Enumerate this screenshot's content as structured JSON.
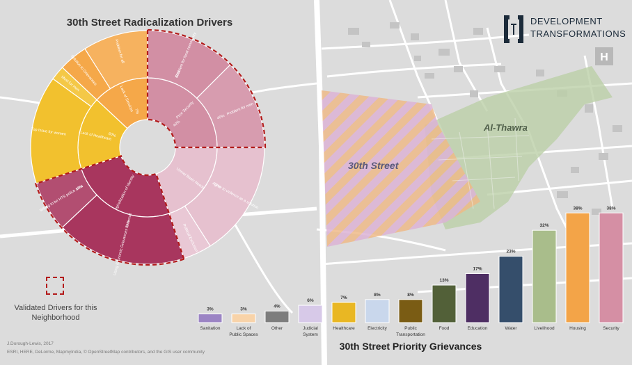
{
  "sunburst_title": "30th Street Radicalization Drivers",
  "sunburst_title_sup": "th",
  "bars_title": "30th Street Priority Grievances",
  "legend_text": "Validated Drivers for this Neighborhood",
  "credit_line1": "J.Dorough-Lewis, 2017",
  "credit_line2": "ESRI, HERE, DeLorme, MapmyIndia, © OpenStreetMap contributors, and the GIS user community",
  "logo": {
    "line1": "DEVELOPMENT",
    "line2": "TRANSFORMATIONS"
  },
  "map_labels": {
    "street": "30th Street",
    "thawra": "Al-Thawra"
  },
  "colors": {
    "economic": "#a8365e",
    "governance": "#e6c1cf",
    "security": "#d28fa4",
    "social": "#f5a849",
    "services": "#f2c12e",
    "validated_border": "#b31b1b"
  },
  "chart_data": [
    {
      "type": "sunburst",
      "title": "30th Street Radicalization Drivers",
      "segments": [
        {
          "category": "Security",
          "start": 0,
          "end": 25,
          "mid_label": "Poor Security",
          "inner_pct": "",
          "outer": [
            {
              "label": "Problem for local community",
              "pct": "60%",
              "start": 0,
              "end": 12.5
            },
            {
              "label": "Problem for men",
              "pct": "40%",
              "start": 12.5,
              "end": 25
            }
          ]
        },
        {
          "category": "Governance",
          "start": 25,
          "end": 45,
          "mid_label": "Unmet Basic Needs",
          "inner_pct": "",
          "outer": [
            {
              "label": "Agree to violence as a solution",
              "pct": "78%",
              "start": 25,
              "end": 41
            },
            {
              "label": "Political Exclusion",
              "pct": "",
              "start": 41,
              "end": 45
            }
          ]
        },
        {
          "category": "Economic",
          "start": 45,
          "end": 70,
          "mid_label": "Marginalization of Identity",
          "inner_pct": "",
          "outer": [
            {
              "label": "Using Economic Grievances to recruit",
              "pct": "74%",
              "start": 45,
              "end": 63
            },
            {
              "label": "Willing to be HTS police area",
              "pct": "19%",
              "start": 63,
              "end": 70
            }
          ]
        },
        {
          "category": "Services",
          "start": 70,
          "end": 87,
          "mid_label": "Lack of Healthcare",
          "inner_pct": "60%",
          "outer": [
            {
              "label": "Top Issue for women",
              "pct": "",
              "start": 70,
              "end": 85
            },
            {
              "label": "Most for men",
              "pct": "",
              "start": 85,
              "end": 87
            }
          ]
        },
        {
          "category": "Social",
          "start": 87,
          "end": 100,
          "mid_label": "Lack of Services",
          "inner_pct": "7%",
          "outer": [
            {
              "label": "Solution to Grievances",
              "pct": "",
              "start": 87,
              "end": 91
            },
            {
              "label": "Problem for all",
              "pct": "",
              "start": 91,
              "end": 100
            }
          ]
        }
      ],
      "inner_pct_top": "40%",
      "validated": [
        "Security",
        "Economic"
      ]
    },
    {
      "type": "bar",
      "title": "30th Street Priority Grievances",
      "categories": [
        "Sanitation",
        "Lack of Public Spaces",
        "Other",
        "Judicial System",
        "Healthcare",
        "Electricity",
        "Public Transportation",
        "Food",
        "Education",
        "Water",
        "Livelihood",
        "Housing",
        "Security"
      ],
      "values": [
        3,
        3,
        4,
        6,
        7,
        8,
        8,
        13,
        17,
        23,
        32,
        38,
        38
      ],
      "value_labels": [
        "3%",
        "3%",
        "4%",
        "6%",
        "7%",
        "8%",
        "8%",
        "13%",
        "17%",
        "23%",
        "32%",
        "38%",
        "38%"
      ],
      "bar_colors": [
        "#9b84c4",
        "#f8d3a9",
        "#7d7d7d",
        "#d7c9e8",
        "#e9b723",
        "#c9d7ec",
        "#7a5c14",
        "#526038",
        "#4e2e63",
        "#354e6b",
        "#a9bd8b",
        "#f3a448",
        "#d58fa4"
      ],
      "ylim": [
        0,
        40
      ]
    }
  ]
}
